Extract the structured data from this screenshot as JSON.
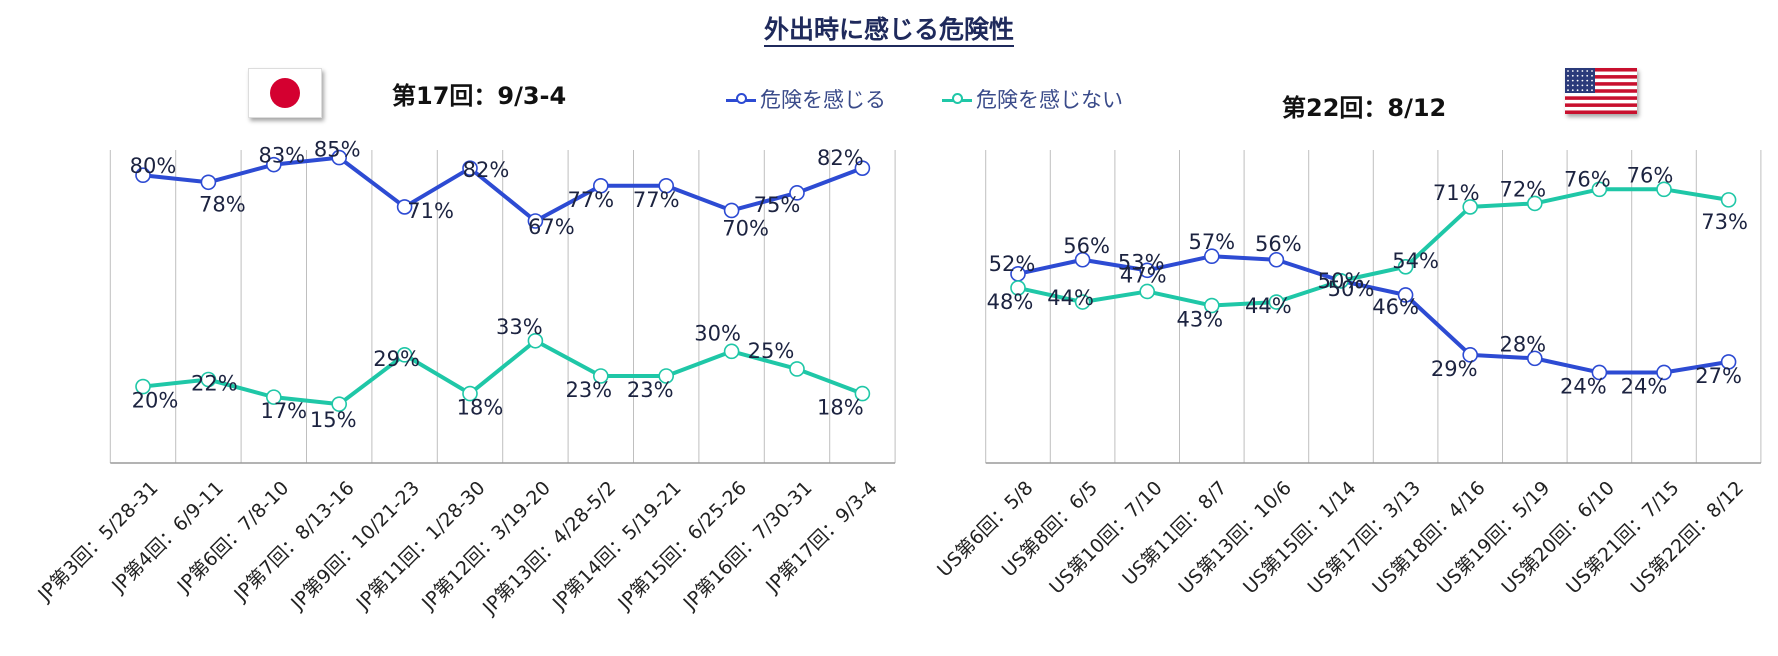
{
  "title": "外出時に感じる危険性",
  "legend": {
    "danger_label": "危険を感じる",
    "no_danger_label": "危険を感じない"
  },
  "colors": {
    "danger": "#2d4bd3",
    "no_danger": "#1fc7a7",
    "grid": "#bfbfbf",
    "title": "#1f2a5c"
  },
  "flags": {
    "left": "japan-flag",
    "right": "usa-flag"
  },
  "chart_data": [
    {
      "type": "line",
      "subtitle": "第17回：9/3-4",
      "categories": [
        "JP第3回：5/28-31",
        "JP第4回：6/9-11",
        "JP第6回：7/8-10",
        "JP第7回：8/13-16",
        "JP第9回：10/21-23",
        "JP第11回：1/28-30",
        "JP第12回：3/19-20",
        "JP第13回：4/28-5/2",
        "JP第14回：5/19-21",
        "JP第15回：6/25-26",
        "JP第16回：7/30-31",
        "JP第17回：9/3-4"
      ],
      "series": [
        {
          "name": "危険を感じる",
          "values": [
            80,
            78,
            83,
            85,
            71,
            82,
            67,
            77,
            77,
            70,
            75,
            82
          ],
          "labels": [
            "80%",
            "78%",
            "83%",
            "85%",
            "71%",
            "82%",
            "67%",
            "77%",
            "77%",
            "70%",
            "75%",
            "82%"
          ]
        },
        {
          "name": "危険を感じない",
          "values": [
            20,
            22,
            17,
            15,
            29,
            18,
            33,
            23,
            23,
            30,
            25,
            18
          ],
          "labels": [
            "20%",
            "22%",
            "17%",
            "15%",
            "29%",
            "18%",
            "33%",
            "23%",
            "23%",
            "30%",
            "25%",
            "18%"
          ]
        }
      ],
      "ylim": [
        0,
        90
      ],
      "grid": true
    },
    {
      "type": "line",
      "subtitle": "第22回：8/12",
      "categories": [
        "US第6回：5/8",
        "US第8回：6/5",
        "US第10回：7/10",
        "US第11回：8/7",
        "US第13回：10/6",
        "US第15回：1/14",
        "US第17回：3/13",
        "US第18回：4/16",
        "US第19回：5/19",
        "US第20回：6/10",
        "US第21回：7/15",
        "US第22回：8/12"
      ],
      "series": [
        {
          "name": "危険を感じる",
          "values": [
            52,
            56,
            53,
            57,
            56,
            50,
            46,
            29,
            28,
            24,
            24,
            27
          ],
          "labels": [
            "52%",
            "56%",
            "53%",
            "57%",
            "56%",
            "50%",
            "46%",
            "29%",
            "28%",
            "24%",
            "24%",
            "27%"
          ]
        },
        {
          "name": "危険を感じない",
          "values": [
            48,
            44,
            47,
            43,
            44,
            50,
            54,
            71,
            72,
            76,
            76,
            73
          ],
          "labels": [
            "48%",
            "44%",
            "47%",
            "43%",
            "44%",
            "50%",
            "54%",
            "71%",
            "72%",
            "76%",
            "76%",
            "73%"
          ]
        }
      ],
      "ylim": [
        0,
        90
      ],
      "grid": true
    }
  ]
}
